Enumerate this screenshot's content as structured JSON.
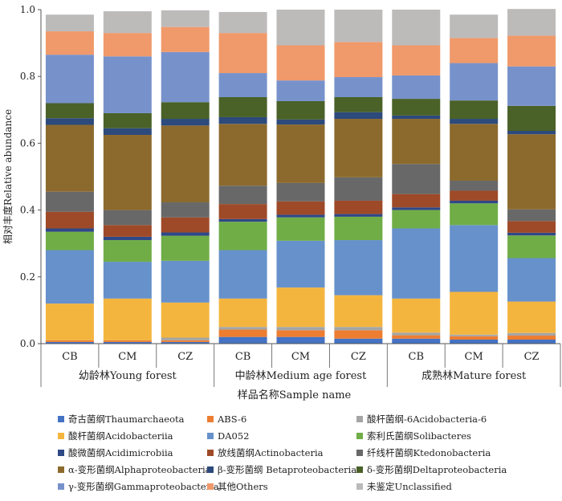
{
  "chart_data": {
    "type": "stacked-bar",
    "ylabel": "相对丰度Relative abundance",
    "xlabel": "样品名称Sample name",
    "ylim": [
      0,
      1.0
    ],
    "yticks": [
      "0.0",
      "0.2",
      "0.4",
      "0.6",
      "0.8",
      "1.0"
    ],
    "ytick_values": [
      0,
      0.2,
      0.4,
      0.6,
      0.8,
      1.0
    ],
    "groups": [
      {
        "label": "幼龄林Young forest",
        "samples": [
          "CB",
          "CM",
          "CZ"
        ]
      },
      {
        "label": "中龄林Medium age forest",
        "samples": [
          "CB",
          "CM",
          "CZ"
        ]
      },
      {
        "label": "成熟林Mature forest",
        "samples": [
          "CB",
          "CM",
          "CZ"
        ]
      }
    ],
    "series": [
      {
        "name": "奇古菌纲Thaumarchaeota",
        "color": "#4472c4",
        "values": [
          0.005,
          0.005,
          0.005,
          0.02,
          0.02,
          0.015,
          0.015,
          0.012,
          0.012
        ]
      },
      {
        "name": "ABS-6",
        "color": "#ed7d31",
        "values": [
          0.005,
          0.005,
          0.005,
          0.022,
          0.02,
          0.025,
          0.01,
          0.01,
          0.012
        ]
      },
      {
        "name": "酸杆菌纲-6Acidobacteria-6",
        "color": "#a5a5a5",
        "values": [
          0.0,
          0.0,
          0.008,
          0.008,
          0.01,
          0.01,
          0.008,
          0.005,
          0.008
        ]
      },
      {
        "name": "酸杆菌纲Acidobacteriia",
        "color": "#f4b53f",
        "values": [
          0.11,
          0.125,
          0.105,
          0.085,
          0.118,
          0.095,
          0.102,
          0.128,
          0.094
        ]
      },
      {
        "name": "DA052",
        "color": "#6691cb",
        "values": [
          0.16,
          0.11,
          0.125,
          0.145,
          0.14,
          0.165,
          0.21,
          0.2,
          0.13
        ]
      },
      {
        "name": "索利氏菌纲Solibacteres",
        "color": "#70ad47",
        "values": [
          0.055,
          0.065,
          0.075,
          0.085,
          0.07,
          0.07,
          0.055,
          0.065,
          0.068
        ]
      },
      {
        "name": "酸微菌纲Acidimicrobiia",
        "color": "#2f4886",
        "values": [
          0.01,
          0.01,
          0.01,
          0.008,
          0.008,
          0.008,
          0.008,
          0.008,
          0.008
        ]
      },
      {
        "name": "放线菌纲Actinobacteria",
        "color": "#9e4a28",
        "values": [
          0.05,
          0.035,
          0.045,
          0.045,
          0.04,
          0.04,
          0.04,
          0.03,
          0.035
        ]
      },
      {
        "name": "纤线杆菌纲Ktedonobacteria",
        "color": "#686868",
        "values": [
          0.06,
          0.045,
          0.045,
          0.055,
          0.055,
          0.07,
          0.09,
          0.03,
          0.035
        ]
      },
      {
        "name": "α-变形菌纲Alphaproteobacteria",
        "color": "#8c6a2d",
        "values": [
          0.2,
          0.225,
          0.23,
          0.185,
          0.175,
          0.175,
          0.135,
          0.17,
          0.225
        ]
      },
      {
        "name": "β-变形菌纲 Betaproteobacteria",
        "color": "#2d4a7c",
        "values": [
          0.02,
          0.02,
          0.02,
          0.02,
          0.015,
          0.02,
          0.01,
          0.015,
          0.01
        ]
      },
      {
        "name": "δ-变形菌纲Deltaproteobacteria",
        "color": "#4a6128",
        "values": [
          0.045,
          0.045,
          0.05,
          0.06,
          0.055,
          0.045,
          0.05,
          0.055,
          0.075
        ]
      },
      {
        "name": "γ-变形菌纲Gammaproteobacteria",
        "color": "#7792cb",
        "values": [
          0.145,
          0.17,
          0.15,
          0.072,
          0.062,
          0.06,
          0.07,
          0.112,
          0.118
        ]
      },
      {
        "name": "其他Others",
        "color": "#f0996a",
        "values": [
          0.07,
          0.07,
          0.075,
          0.12,
          0.105,
          0.105,
          0.09,
          0.075,
          0.092
        ]
      },
      {
        "name": "未鉴定Unclassified",
        "color": "#bdbaba",
        "values": [
          0.05,
          0.065,
          0.05,
          0.063,
          0.107,
          0.097,
          0.107,
          0.07,
          0.08
        ]
      }
    ]
  }
}
